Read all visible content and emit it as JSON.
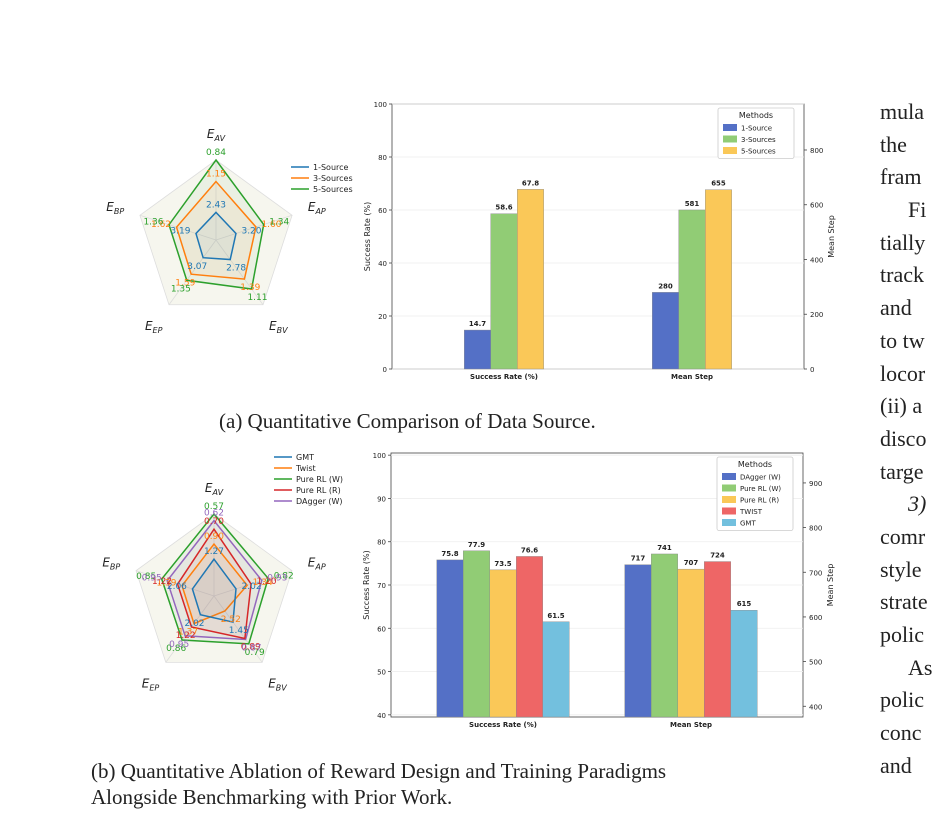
{
  "figure_a": {
    "caption": "(a) Quantitative Comparison of Data Source.",
    "radar": {
      "axes": [
        "E_AV",
        "E_AP",
        "E_BV",
        "E_EP",
        "E_BP"
      ],
      "series": [
        {
          "name": "1-Source",
          "color": "#1f77b4",
          "values": [
            2.43,
            3.2,
            2.78,
            3.07,
            3.19
          ]
        },
        {
          "name": "3-Sources",
          "color": "#ff7f0e",
          "values": [
            1.15,
            1.6,
            1.39,
            1.59,
            1.62
          ]
        },
        {
          "name": "5-Sources",
          "color": "#2ca02c",
          "values": [
            0.84,
            1.34,
            1.11,
            1.35,
            1.36
          ]
        }
      ]
    }
  },
  "figure_b": {
    "caption_line1": "(b) Quantitative Ablation of Reward Design and Training Paradigms",
    "caption_line2": "Alongside Benchmarking with Prior Work.",
    "radar": {
      "axes": [
        "E_AV",
        "E_AP",
        "E_BV",
        "E_EP",
        "E_BP"
      ],
      "series": [
        {
          "name": "GMT",
          "color": "#1f77b4",
          "values": [
            1.27,
            2.02,
            1.45,
            2.02,
            2.06
          ]
        },
        {
          "name": "Twist",
          "color": "#ff7f0e",
          "values": [
            0.9,
            1.34,
            2.52,
            1.37,
            1.39
          ]
        },
        {
          "name": "Pure RL (W)",
          "color": "#2ca02c",
          "values": [
            0.57,
            0.82,
            0.79,
            0.86,
            0.85
          ]
        },
        {
          "name": "Pure RL (R)",
          "color": "#d62728",
          "values": [
            0.7,
            1.2,
            0.89,
            1.22,
            1.22
          ]
        },
        {
          "name": "DAgger (W)",
          "color": "#9467bd",
          "values": [
            0.62,
            0.93,
            0.87,
            0.95,
            0.95
          ]
        }
      ]
    }
  },
  "chart_data": [
    {
      "type": "bar",
      "legend_title": "Methods",
      "categories": [
        "Success Rate (%)",
        "Mean Step"
      ],
      "ylabel": "Success Rate (%)",
      "ylabel_right": "Mean Step",
      "ylim": [
        0,
        100
      ],
      "ylim_right": [
        0,
        968
      ],
      "yticks": [
        0,
        20,
        40,
        60,
        80,
        100
      ],
      "yticks_right": [
        0,
        200,
        400,
        600,
        800
      ],
      "series": [
        {
          "name": "1-Source",
          "color": "#5470c6",
          "values": [
            14.7,
            280
          ],
          "labels": [
            "14.7",
            "280"
          ]
        },
        {
          "name": "3-Sources",
          "color": "#91cc75",
          "values": [
            58.6,
            581
          ],
          "labels": [
            "58.6",
            "581"
          ]
        },
        {
          "name": "5-Sources",
          "color": "#fac858",
          "values": [
            67.8,
            655
          ],
          "labels": [
            "67.8",
            "655"
          ]
        }
      ]
    },
    {
      "type": "bar",
      "legend_title": "Methods",
      "categories": [
        "Success Rate (%)",
        "Mean Step"
      ],
      "ylabel": "Success Rate (%)",
      "ylabel_right": "Mean Step",
      "ylim": [
        39.5,
        100.5
      ],
      "ylim_right": [
        376,
        967
      ],
      "yticks": [
        40,
        50,
        60,
        70,
        80,
        90,
        100
      ],
      "yticks_right": [
        400,
        500,
        600,
        700,
        800,
        900
      ],
      "series": [
        {
          "name": "DAgger (W)",
          "color": "#5470c6",
          "values": [
            75.8,
            717
          ],
          "labels": [
            "75.8",
            "717"
          ]
        },
        {
          "name": "Pure RL (W)",
          "color": "#91cc75",
          "values": [
            77.9,
            741
          ],
          "labels": [
            "77.9",
            "741"
          ]
        },
        {
          "name": "Pure RL (R)",
          "color": "#fac858",
          "values": [
            73.5,
            707
          ],
          "labels": [
            "73.5",
            "707"
          ]
        },
        {
          "name": "TWIST",
          "color": "#ee6666",
          "values": [
            76.6,
            724
          ],
          "labels": [
            "76.6",
            "724"
          ]
        },
        {
          "name": "GMT",
          "color": "#73c0de",
          "values": [
            61.5,
            615
          ],
          "labels": [
            "61.5",
            "615"
          ]
        }
      ]
    }
  ],
  "right_column": [
    "mula",
    "the",
    "fram",
    "Fi",
    "tially",
    "track",
    "and",
    "to tw",
    "locor",
    "(ii) a",
    "disco",
    "targe",
    "3)",
    "comr",
    "style",
    "strate",
    "polic",
    "As",
    "polic",
    "conc",
    "and"
  ]
}
